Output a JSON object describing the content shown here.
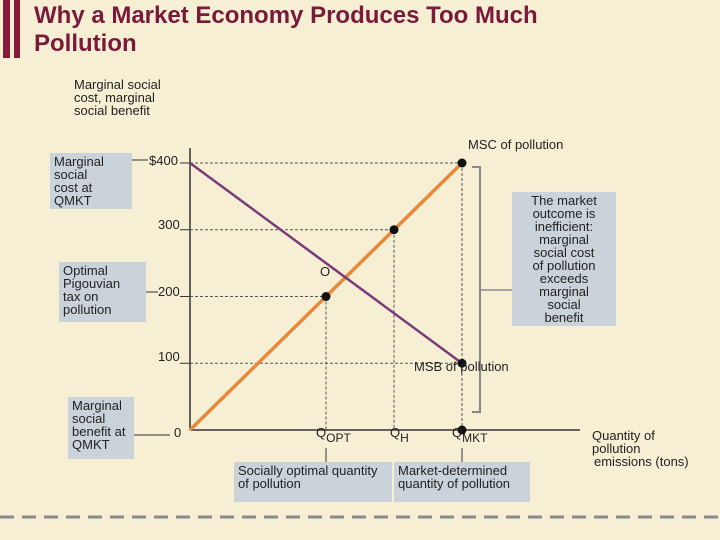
{
  "title_line1": "Why a Market Economy Produces Too Much",
  "title_line2": "Pollution",
  "y_axis_label": [
    "Marginal social",
    "cost, marginal",
    "social benefit"
  ],
  "x_axis_label": [
    "Quantity of",
    "pollution",
    "emissions (tons)"
  ],
  "y_ticks": [
    "$400",
    "300",
    "200",
    "100",
    "0"
  ],
  "msc_label": "MSC of pollution",
  "msb_label": "MSB of pollution",
  "point_o_label": "O",
  "q_opt": {
    "letter": "Q",
    "sub": "OPT"
  },
  "q_h": {
    "letter": "Q",
    "sub": "H"
  },
  "q_mkt": {
    "letter": "Q",
    "sub": "MKT"
  },
  "box_msc_qmkt": [
    "Marginal",
    "social",
    "cost at",
    "QMKT"
  ],
  "box_pigouvian": [
    "Optimal",
    "Pigouvian",
    "tax on",
    "pollution"
  ],
  "box_msb_qmkt": [
    "Marginal",
    "social",
    "benefit at",
    "QMKT"
  ],
  "box_inefficient": [
    "The market",
    "outcome is",
    "inefficient:",
    "marginal",
    "social cost",
    "of pollution",
    "exceeds",
    "marginal",
    "social",
    "benefit"
  ],
  "box_social_opt": [
    "Socially optimal quantity",
    "of pollution"
  ],
  "box_market_det": [
    "Market-determined",
    "quantity of pollution"
  ],
  "colors": {
    "msc": "#e8883a",
    "msb": "#7a3a7a",
    "title": "#7a1a3a",
    "box": "#c9d3d9",
    "background": "#f7efd4"
  },
  "chart_data": {
    "type": "line",
    "series": [
      {
        "name": "MSC of pollution",
        "x": [
          0,
          3
        ],
        "y": [
          0,
          400
        ]
      },
      {
        "name": "MSB of pollution",
        "x": [
          0,
          3
        ],
        "y": [
          400,
          100
        ]
      }
    ],
    "points": [
      {
        "label": "O",
        "x": 1,
        "y": 200
      },
      {
        "label": "",
        "x": 3,
        "y": 400
      },
      {
        "label": "",
        "x": 3,
        "y": 100
      },
      {
        "label": "",
        "x": 2,
        "y": 300
      }
    ],
    "x_categories": [
      "QOPT",
      "QH",
      "QMKT"
    ],
    "ylim": [
      0,
      400
    ],
    "ylabel": "Marginal social cost, marginal social benefit",
    "xlabel": "Quantity of pollution emissions (tons)"
  }
}
